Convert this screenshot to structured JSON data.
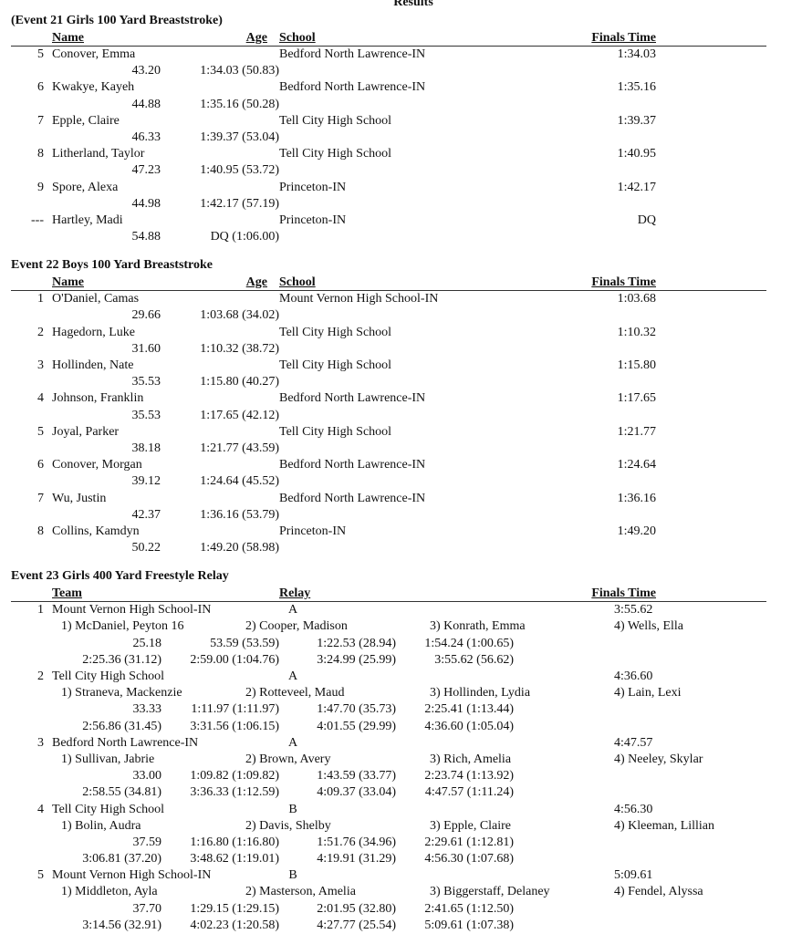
{
  "page_title": "Results",
  "individual_events": [
    {
      "title": "(Event 21  Girls 100 Yard Breaststroke)",
      "headers": {
        "name": "Name",
        "age": "Age",
        "school": "School",
        "finals": "Finals Time"
      },
      "results": [
        {
          "place": "5",
          "name": "Conover, Emma",
          "school": "Bedford North Lawrence-IN",
          "finals": "1:34.03",
          "split1": "43.20",
          "split2": "1:34.03 (50.83)"
        },
        {
          "place": "6",
          "name": "Kwakye, Kayeh",
          "school": "Bedford North Lawrence-IN",
          "finals": "1:35.16",
          "split1": "44.88",
          "split2": "1:35.16 (50.28)"
        },
        {
          "place": "7",
          "name": "Epple, Claire",
          "school": "Tell City High School",
          "finals": "1:39.37",
          "split1": "46.33",
          "split2": "1:39.37 (53.04)"
        },
        {
          "place": "8",
          "name": "Litherland, Taylor",
          "school": "Tell City High School",
          "finals": "1:40.95",
          "split1": "47.23",
          "split2": "1:40.95 (53.72)"
        },
        {
          "place": "9",
          "name": "Spore, Alexa",
          "school": "Princeton-IN",
          "finals": "1:42.17",
          "split1": "44.98",
          "split2": "1:42.17 (57.19)"
        },
        {
          "place": "---",
          "name": "Hartley, Madi",
          "school": "Princeton-IN",
          "finals": "DQ",
          "split1": "54.88",
          "split2": "DQ (1:06.00)"
        }
      ]
    },
    {
      "title": "Event 22  Boys 100 Yard Breaststroke",
      "headers": {
        "name": "Name",
        "age": "Age",
        "school": "School",
        "finals": "Finals Time"
      },
      "results": [
        {
          "place": "1",
          "name": "O'Daniel, Camas",
          "school": "Mount Vernon High School-IN",
          "finals": "1:03.68",
          "split1": "29.66",
          "split2": "1:03.68 (34.02)"
        },
        {
          "place": "2",
          "name": "Hagedorn, Luke",
          "school": "Tell City High School",
          "finals": "1:10.32",
          "split1": "31.60",
          "split2": "1:10.32 (38.72)"
        },
        {
          "place": "3",
          "name": "Hollinden, Nate",
          "school": "Tell City High School",
          "finals": "1:15.80",
          "split1": "35.53",
          "split2": "1:15.80 (40.27)"
        },
        {
          "place": "4",
          "name": "Johnson, Franklin",
          "school": "Bedford North Lawrence-IN",
          "finals": "1:17.65",
          "split1": "35.53",
          "split2": "1:17.65 (42.12)"
        },
        {
          "place": "5",
          "name": "Joyal, Parker",
          "school": "Tell City High School",
          "finals": "1:21.77",
          "split1": "38.18",
          "split2": "1:21.77 (43.59)"
        },
        {
          "place": "6",
          "name": "Conover, Morgan",
          "school": "Bedford North Lawrence-IN",
          "finals": "1:24.64",
          "split1": "39.12",
          "split2": "1:24.64 (45.52)"
        },
        {
          "place": "7",
          "name": "Wu, Justin",
          "school": "Bedford North Lawrence-IN",
          "finals": "1:36.16",
          "split1": "42.37",
          "split2": "1:36.16 (53.79)"
        },
        {
          "place": "8",
          "name": "Collins, Kamdyn",
          "school": "Princeton-IN",
          "finals": "1:49.20",
          "split1": "50.22",
          "split2": "1:49.20 (58.98)"
        }
      ]
    }
  ],
  "relay_event": {
    "title": "Event 23  Girls 400 Yard Freestyle Relay",
    "headers": {
      "team": "Team",
      "relay": "Relay",
      "finals": "Finals Time"
    },
    "results": [
      {
        "place": "1",
        "team": "Mount Vernon High School-IN",
        "relay": "A",
        "finals": "3:55.62",
        "swimmers": [
          "1) McDaniel, Peyton 16",
          "2) Cooper, Madison",
          "3) Konrath, Emma",
          "4) Wells, Ella"
        ],
        "splits": [
          [
            "25.18",
            "53.59 (53.59)",
            "1:22.53 (28.94)",
            "1:54.24 (1:00.65)"
          ],
          [
            "2:25.36 (31.12)",
            "2:59.00 (1:04.76)",
            "3:24.99 (25.99)",
            "3:55.62 (56.62)"
          ]
        ]
      },
      {
        "place": "2",
        "team": "Tell City High School",
        "relay": "A",
        "finals": "4:36.60",
        "swimmers": [
          "1) Straneva, Mackenzie",
          "2) Rotteveel, Maud",
          "3) Hollinden, Lydia",
          "4) Lain, Lexi"
        ],
        "splits": [
          [
            "33.33",
            "1:11.97 (1:11.97)",
            "1:47.70 (35.73)",
            "2:25.41 (1:13.44)"
          ],
          [
            "2:56.86 (31.45)",
            "3:31.56 (1:06.15)",
            "4:01.55 (29.99)",
            "4:36.60 (1:05.04)"
          ]
        ]
      },
      {
        "place": "3",
        "team": "Bedford North Lawrence-IN",
        "relay": "A",
        "finals": "4:47.57",
        "swimmers": [
          "1) Sullivan, Jabrie",
          "2) Brown, Avery",
          "3) Rich, Amelia",
          "4) Neeley, Skylar"
        ],
        "splits": [
          [
            "33.00",
            "1:09.82 (1:09.82)",
            "1:43.59 (33.77)",
            "2:23.74 (1:13.92)"
          ],
          [
            "2:58.55 (34.81)",
            "3:36.33 (1:12.59)",
            "4:09.37 (33.04)",
            "4:47.57 (1:11.24)"
          ]
        ]
      },
      {
        "place": "4",
        "team": "Tell City High School",
        "relay": "B",
        "finals": "4:56.30",
        "swimmers": [
          "1) Bolin, Audra",
          "2) Davis, Shelby",
          "3) Epple, Claire",
          "4) Kleeman, Lillian"
        ],
        "splits": [
          [
            "37.59",
            "1:16.80 (1:16.80)",
            "1:51.76 (34.96)",
            "2:29.61 (1:12.81)"
          ],
          [
            "3:06.81 (37.20)",
            "3:48.62 (1:19.01)",
            "4:19.91 (31.29)",
            "4:56.30 (1:07.68)"
          ]
        ]
      },
      {
        "place": "5",
        "team": "Mount Vernon High School-IN",
        "relay": "B",
        "finals": "5:09.61",
        "swimmers": [
          "1) Middleton, Ayla",
          "2) Masterson, Amelia",
          "3) Biggerstaff, Delaney",
          "4) Fendel, Alyssa"
        ],
        "splits": [
          [
            "37.70",
            "1:29.15 (1:29.15)",
            "2:01.95 (32.80)",
            "2:41.65 (1:12.50)"
          ],
          [
            "3:14.56 (32.91)",
            "4:02.23 (1:20.58)",
            "4:27.77 (25.54)",
            "5:09.61 (1:07.38)"
          ]
        ]
      }
    ]
  }
}
